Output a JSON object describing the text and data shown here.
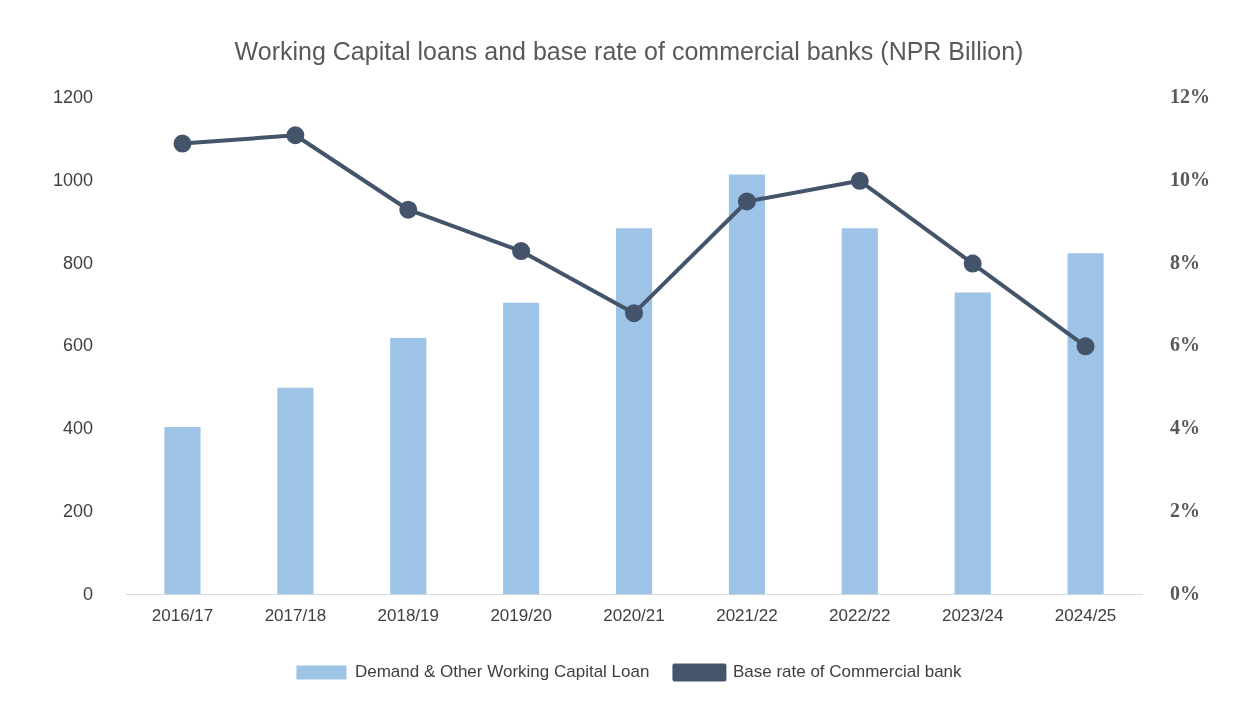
{
  "chart_data": {
    "type": "bar",
    "title": "Working Capital loans and base rate of commercial banks (NPR Billion)",
    "categories": [
      "2016/17",
      "2017/18",
      "2018/19",
      "2019/20",
      "2020/21",
      "2021/22",
      "2022/22",
      "2023/24",
      "2024/25"
    ],
    "series": [
      {
        "name": "Demand & Other Working Capital Loan",
        "color": "#9dc3e6",
        "values": [
          405,
          500,
          620,
          705,
          885,
          1015,
          885,
          730,
          825
        ]
      },
      {
        "name": "Base rate of Commercial bank",
        "type": "line",
        "axis": "y2",
        "color": "#44546a",
        "marker": "circle",
        "values": [
          10.9,
          11.1,
          9.3,
          8.3,
          6.8,
          9.5,
          10.0,
          8.0,
          6.0
        ]
      }
    ],
    "ylim": [
      0,
      1200
    ],
    "yticks": [
      0,
      200,
      400,
      600,
      800,
      1000,
      1200
    ],
    "y2lim": [
      0,
      12
    ],
    "y2ticks": [
      {
        "value": 0,
        "label": "0%"
      },
      {
        "value": 2,
        "label": "2%"
      },
      {
        "value": 4,
        "label": "4%"
      },
      {
        "value": 6,
        "label": "6%"
      },
      {
        "value": 8,
        "label": "8%"
      },
      {
        "value": 10,
        "label": "10%"
      },
      {
        "value": 12,
        "label": "12%"
      }
    ],
    "grid": false,
    "legend": "bottom"
  }
}
